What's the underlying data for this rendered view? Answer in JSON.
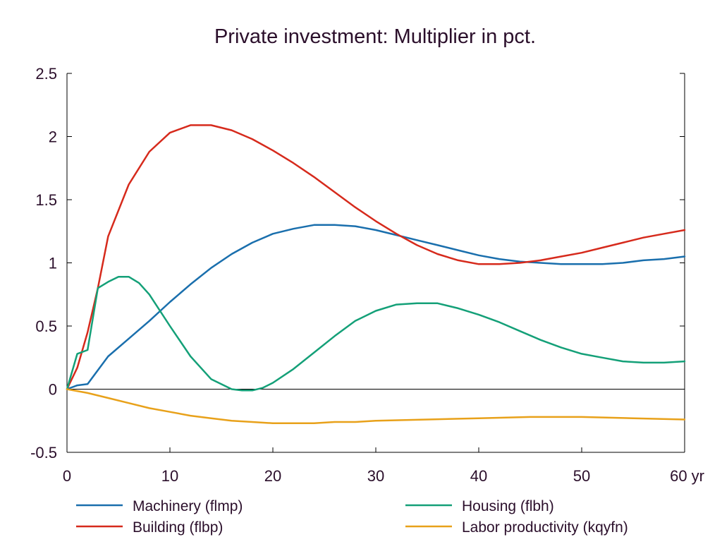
{
  "chart_data": {
    "type": "line",
    "title": "Private investment: Multiplier in pct.",
    "xlabel": "",
    "ylabel": "",
    "x_unit": "yr",
    "xlim": [
      0,
      60
    ],
    "ylim": [
      -0.5,
      2.5
    ],
    "xticks": [
      "0",
      "10",
      "20",
      "30",
      "40",
      "50",
      "60 yr"
    ],
    "yticks": [
      "2.5",
      "2",
      "1.5",
      "1",
      "0.5",
      "0",
      "-0.5"
    ],
    "grid": false,
    "legend_position": "bottom",
    "series": [
      {
        "name": "Machinery (flmp)",
        "color": "#1a6fad",
        "x": [
          0,
          1,
          2,
          3,
          4,
          6,
          8,
          10,
          12,
          14,
          16,
          18,
          20,
          22,
          24,
          26,
          28,
          30,
          32,
          34,
          36,
          38,
          40,
          42,
          44,
          46,
          48,
          50,
          52,
          54,
          56,
          58,
          60
        ],
        "y": [
          0,
          0.03,
          0.04,
          0.15,
          0.26,
          0.4,
          0.54,
          0.69,
          0.83,
          0.96,
          1.07,
          1.16,
          1.23,
          1.27,
          1.3,
          1.3,
          1.29,
          1.26,
          1.22,
          1.18,
          1.14,
          1.1,
          1.06,
          1.03,
          1.01,
          1.0,
          0.99,
          0.99,
          0.99,
          1.0,
          1.02,
          1.03,
          1.05
        ]
      },
      {
        "name": "Building (flbp)",
        "color": "#d62a1c",
        "x": [
          0,
          1,
          2,
          3,
          4,
          6,
          8,
          10,
          12,
          14,
          16,
          18,
          20,
          22,
          24,
          26,
          28,
          30,
          32,
          34,
          36,
          38,
          40,
          42,
          44,
          46,
          48,
          50,
          52,
          54,
          56,
          58,
          60
        ],
        "y": [
          0,
          0.17,
          0.45,
          0.8,
          1.21,
          1.62,
          1.88,
          2.03,
          2.09,
          2.09,
          2.05,
          1.98,
          1.89,
          1.79,
          1.68,
          1.56,
          1.44,
          1.33,
          1.23,
          1.14,
          1.07,
          1.02,
          0.99,
          0.99,
          1.0,
          1.02,
          1.05,
          1.08,
          1.12,
          1.16,
          1.2,
          1.23,
          1.26
        ]
      },
      {
        "name": "Housing (flbh)",
        "color": "#14a078",
        "x": [
          0,
          1,
          2,
          3,
          4,
          5,
          6,
          7,
          8,
          10,
          12,
          14,
          16,
          17,
          18,
          19,
          20,
          22,
          24,
          26,
          28,
          30,
          32,
          34,
          36,
          38,
          40,
          42,
          44,
          46,
          48,
          50,
          52,
          54,
          56,
          58,
          60
        ],
        "y": [
          0,
          0.28,
          0.31,
          0.8,
          0.85,
          0.89,
          0.89,
          0.84,
          0.75,
          0.5,
          0.26,
          0.08,
          0.0,
          -0.01,
          -0.01,
          0.01,
          0.05,
          0.16,
          0.29,
          0.42,
          0.54,
          0.62,
          0.67,
          0.68,
          0.68,
          0.64,
          0.59,
          0.53,
          0.46,
          0.39,
          0.33,
          0.28,
          0.25,
          0.22,
          0.21,
          0.21,
          0.22
        ]
      },
      {
        "name": "Labor productivity (kqyfn)",
        "color": "#e8a11a",
        "x": [
          0,
          2,
          4,
          6,
          8,
          10,
          12,
          14,
          16,
          18,
          20,
          22,
          24,
          26,
          28,
          30,
          35,
          40,
          45,
          50,
          55,
          60
        ],
        "y": [
          0,
          -0.03,
          -0.07,
          -0.11,
          -0.15,
          -0.18,
          -0.21,
          -0.23,
          -0.25,
          -0.26,
          -0.27,
          -0.27,
          -0.27,
          -0.26,
          -0.26,
          -0.25,
          -0.24,
          -0.23,
          -0.22,
          -0.22,
          -0.23,
          -0.24
        ]
      }
    ]
  }
}
